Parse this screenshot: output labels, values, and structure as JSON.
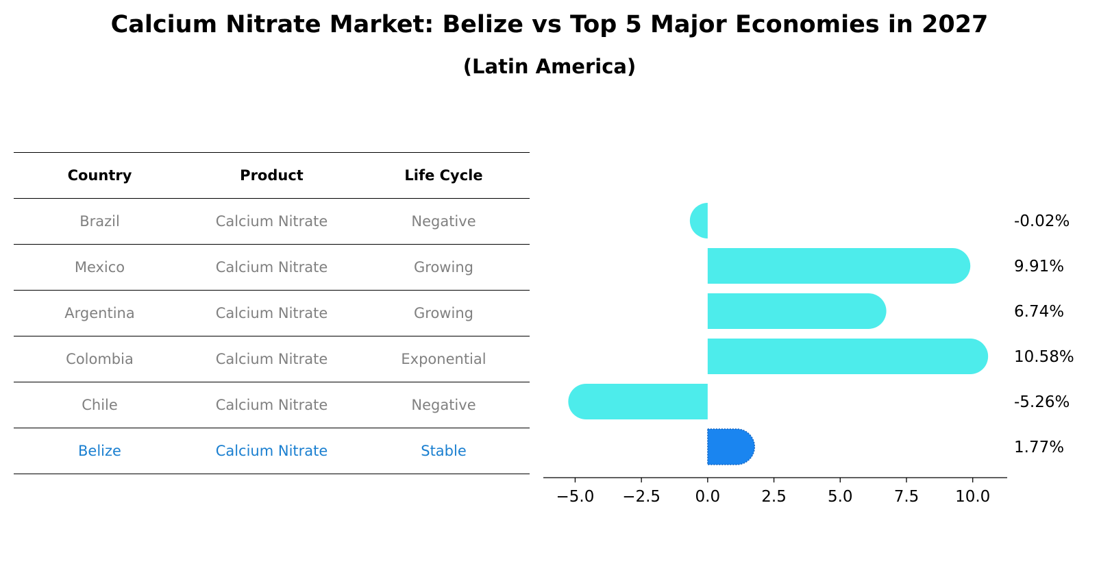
{
  "title": "Calcium Nitrate Market: Belize vs Top 5 Major Economies in 2027",
  "subtitle": "(Latin America)",
  "table": {
    "headers": [
      "Country",
      "Product",
      "Life Cycle"
    ],
    "rows": [
      {
        "country": "Brazil",
        "product": "Calcium Nitrate",
        "life_cycle": "Negative",
        "highlight": false
      },
      {
        "country": "Mexico",
        "product": "Calcium Nitrate",
        "life_cycle": "Growing",
        "highlight": false
      },
      {
        "country": "Argentina",
        "product": "Calcium Nitrate",
        "life_cycle": "Growing",
        "highlight": false
      },
      {
        "country": "Colombia",
        "product": "Calcium Nitrate",
        "life_cycle": "Exponential",
        "highlight": false
      },
      {
        "country": "Chile",
        "product": "Calcium Nitrate",
        "life_cycle": "Negative",
        "highlight": false
      },
      {
        "country": "Belize",
        "product": "Calcium Nitrate",
        "life_cycle": "Stable",
        "highlight": true
      }
    ]
  },
  "colors": {
    "bar": "#4deceb",
    "highlight_bar": "#1a85f0",
    "highlight_text": "#1a7fd0",
    "muted_text": "#808080"
  },
  "chart_data": {
    "type": "bar",
    "orientation": "horizontal",
    "categories": [
      "Brazil",
      "Mexico",
      "Argentina",
      "Colombia",
      "Chile",
      "Belize"
    ],
    "values": [
      -0.02,
      9.91,
      6.74,
      10.58,
      -5.26,
      1.77
    ],
    "value_labels": [
      "-0.02%",
      "9.91%",
      "6.74%",
      "10.58%",
      "-5.26%",
      "1.77%"
    ],
    "highlight_category": "Belize",
    "xlim": [
      -6.2,
      11.3
    ],
    "xticks": [
      -5.0,
      -2.5,
      0.0,
      2.5,
      5.0,
      7.5,
      10.0
    ],
    "xtick_labels": [
      "−5.0",
      "−2.5",
      "0.0",
      "2.5",
      "5.0",
      "7.5",
      "10.0"
    ],
    "grid": false
  }
}
